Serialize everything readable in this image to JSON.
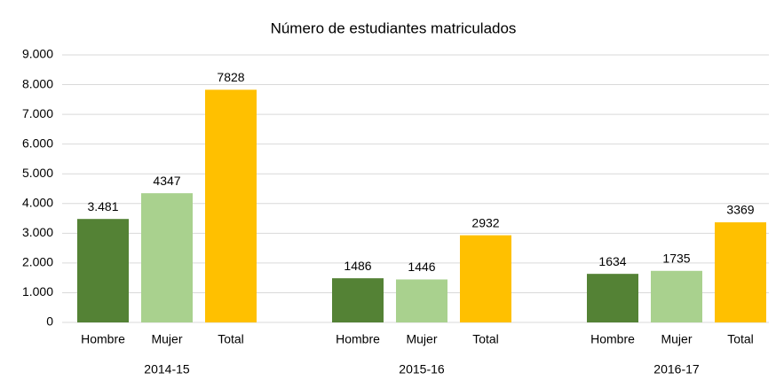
{
  "chart_data": {
    "type": "bar",
    "title": "Número de estudiantes matriculados",
    "categories": [
      "2014-15",
      "2015-16",
      "2016-17"
    ],
    "series": [
      {
        "name": "Hombre",
        "color": "#548235",
        "values": [
          3481,
          1486,
          1634
        ],
        "value_labels": [
          "3.481",
          "1486",
          "1634"
        ]
      },
      {
        "name": "Mujer",
        "color": "#a9d18e",
        "values": [
          4347,
          1446,
          1735
        ]
      },
      {
        "name": "Total",
        "color": "#ffc000",
        "values": [
          7828,
          2932,
          3369
        ]
      }
    ],
    "ylim": [
      0,
      9000
    ],
    "yticks": [
      0,
      {
        "value": 1000,
        "label": "1.000"
      },
      {
        "value": 2000,
        "label": "2.000"
      },
      {
        "value": 3000,
        "label": "3.000"
      },
      {
        "value": 4000,
        "label": "4.000"
      },
      {
        "value": 5000,
        "label": "5.000"
      },
      {
        "value": 6000,
        "label": "6.000"
      },
      {
        "value": 7000,
        "label": "7.000"
      },
      {
        "value": 8000,
        "label": "8.000"
      },
      {
        "value": 9000,
        "label": "9.000"
      }
    ],
    "grid": true
  }
}
